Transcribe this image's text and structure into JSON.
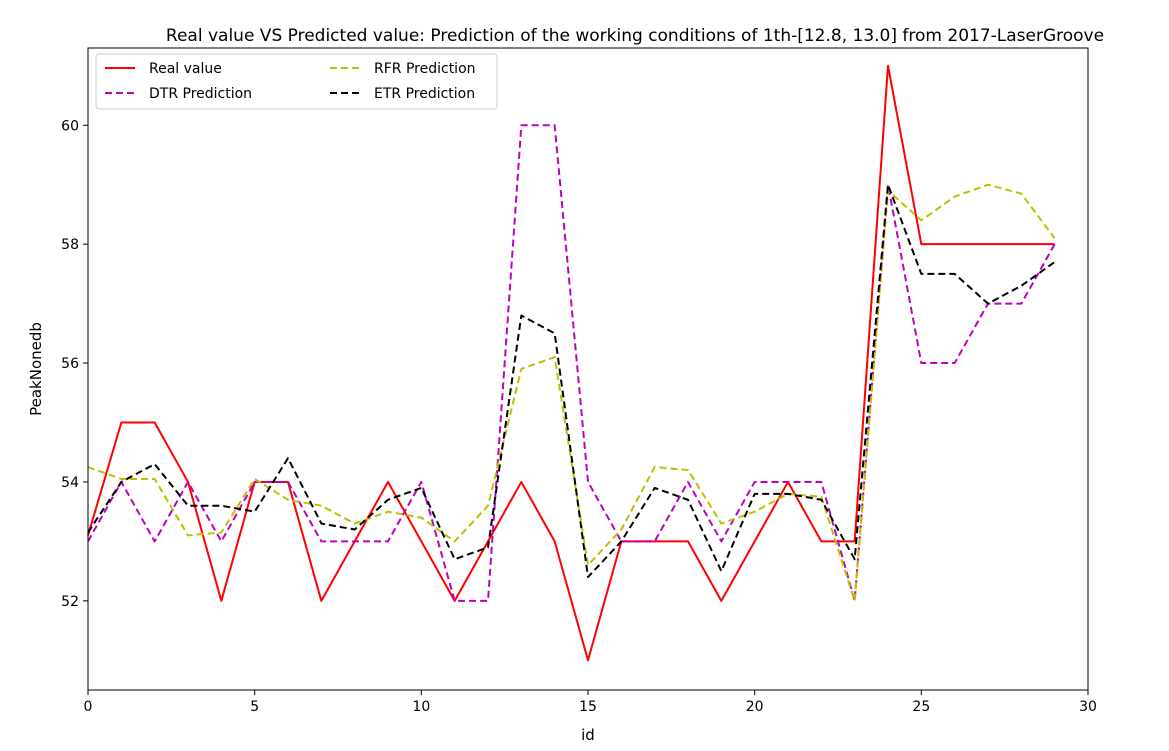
{
  "chart_data": {
    "type": "line",
    "title": "Real value VS Predicted value: Prediction of the working conditions of 1th-[12.8, 13.0] from 2017-LaserGroove",
    "xlabel": "id",
    "ylabel": "PeakNonedb",
    "xlim": [
      0,
      30
    ],
    "ylim": [
      50.5,
      61.3
    ],
    "xticks": [
      0,
      5,
      10,
      15,
      20,
      25,
      30
    ],
    "yticks": [
      52,
      54,
      56,
      58,
      60
    ],
    "grid": false,
    "legend_position": "top-left",
    "x": [
      0,
      1,
      2,
      3,
      4,
      5,
      6,
      7,
      8,
      9,
      10,
      11,
      12,
      13,
      14,
      15,
      16,
      17,
      18,
      19,
      20,
      21,
      22,
      23,
      24,
      25,
      26,
      27,
      28,
      29
    ],
    "series": [
      {
        "name": "Real value",
        "color": "#ff0000",
        "style": "solid",
        "values": [
          53.1,
          55,
          55,
          54,
          52,
          54,
          54,
          52,
          53,
          54,
          53,
          52,
          53,
          54,
          53,
          51,
          53,
          53,
          53,
          52,
          53,
          54,
          53,
          53,
          61,
          58,
          58,
          58,
          58,
          58
        ]
      },
      {
        "name": "DTR Prediction",
        "color": "#bf00bf",
        "style": "dashed",
        "values": [
          53,
          54,
          53,
          54,
          53,
          54,
          54,
          53,
          53,
          53,
          54,
          52,
          52,
          60,
          60,
          54,
          53,
          53,
          54,
          53,
          54,
          54,
          54,
          52,
          59,
          56,
          56,
          57,
          57,
          58
        ]
      },
      {
        "name": "RFR Prediction",
        "color": "#bfbf00",
        "style": "dashed",
        "values": [
          54.25,
          54.05,
          54.05,
          53.1,
          53.15,
          54.05,
          53.7,
          53.6,
          53.3,
          53.5,
          53.4,
          53,
          53.6,
          55.9,
          56.1,
          52.6,
          53.2,
          54.25,
          54.2,
          53.3,
          53.5,
          53.8,
          53.75,
          52,
          58.9,
          58.4,
          58.8,
          59,
          58.85,
          58.1
        ]
      },
      {
        "name": "ETR Prediction",
        "color": "#000000",
        "style": "dashed",
        "values": [
          53.15,
          54,
          54.3,
          53.6,
          53.6,
          53.5,
          54.4,
          53.3,
          53.2,
          53.7,
          53.9,
          52.7,
          52.9,
          56.8,
          56.5,
          52.4,
          53,
          53.9,
          53.7,
          52.5,
          53.8,
          53.8,
          53.7,
          52.7,
          59,
          57.5,
          57.5,
          57,
          57.3,
          57.7
        ]
      }
    ]
  }
}
